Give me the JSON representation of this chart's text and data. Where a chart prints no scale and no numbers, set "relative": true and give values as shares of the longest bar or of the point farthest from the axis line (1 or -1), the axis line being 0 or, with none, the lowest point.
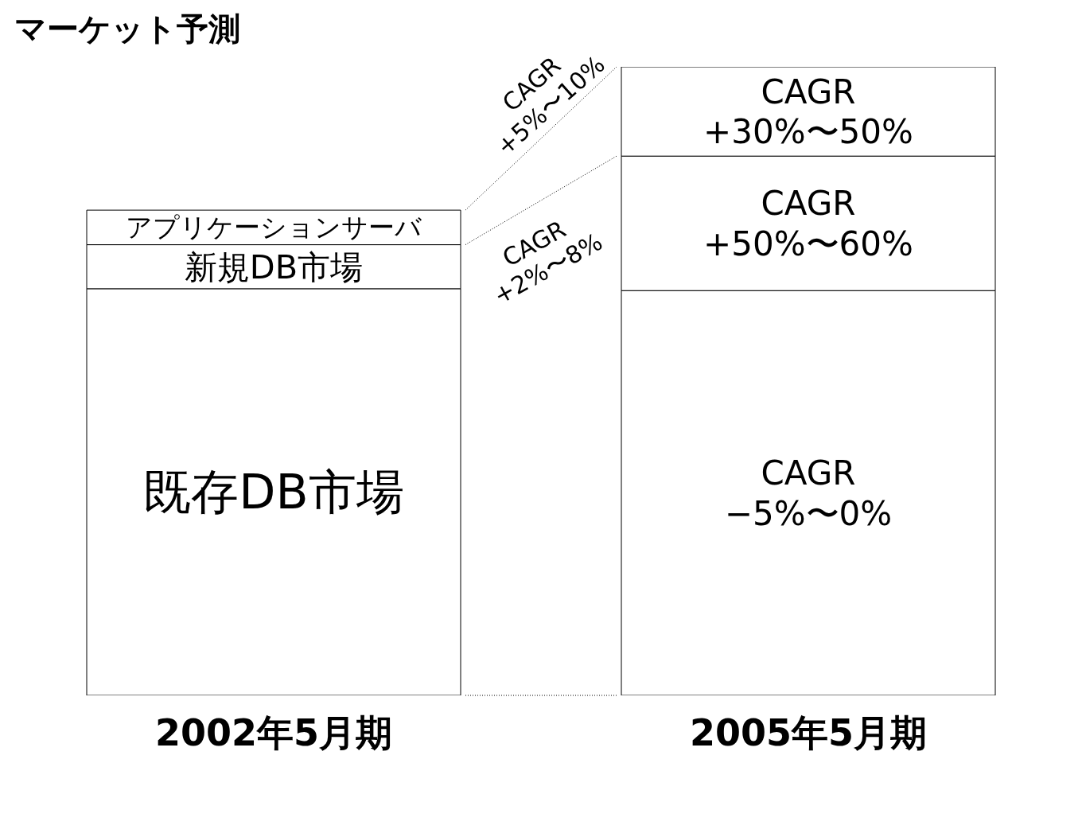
{
  "chart_data": {
    "type": "bar",
    "title": "マーケット予測",
    "stacked": true,
    "relative": true,
    "categories": [
      "2002年5月期",
      "2005年5月期"
    ],
    "series": [
      {
        "name": "既存DB市場",
        "color": "#ffffff",
        "values": [
          0.647,
          0.644
        ]
      },
      {
        "name": "新規DB市場",
        "color": "#ffffff",
        "values": [
          0.07,
          0.214
        ]
      },
      {
        "name": "アプリケーションサーバ",
        "color": "#ffffff",
        "values": [
          0.055,
          0.142
        ]
      }
    ],
    "annotations": [
      "CAGR\n+5%〜10%",
      "CAGR\n+2%〜8%",
      "CAGR\n−5%〜0%",
      "CAGR\n+50%〜60%",
      "CAGR\n+30%〜50%"
    ],
    "legend": false,
    "grid": false
  }
}
